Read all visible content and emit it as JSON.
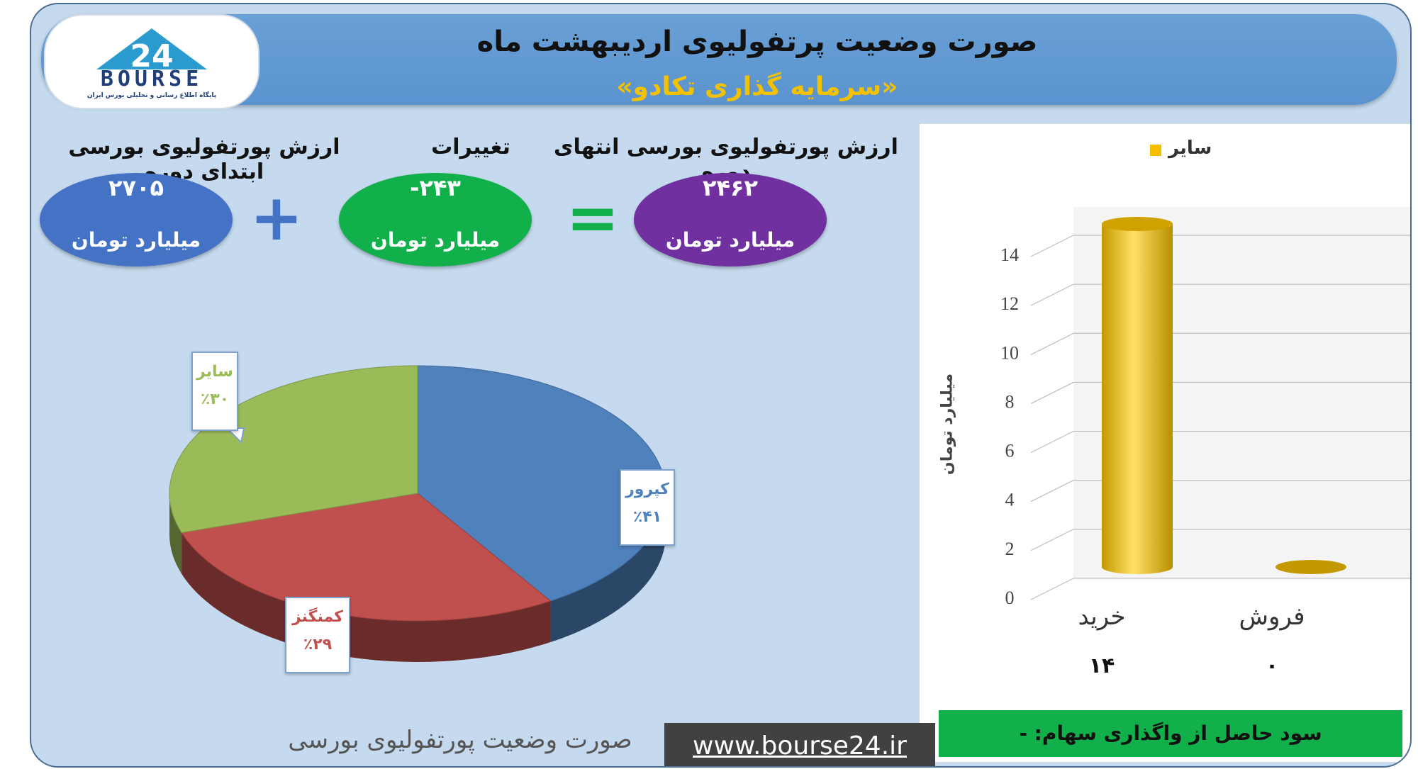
{
  "header": {
    "title": "صورت وضعیت پرتفولیوی اردیبهشت ماه",
    "subtitle": "«سرمایه گذاری تکادو»"
  },
  "logo": {
    "mark": "24",
    "text": "BOURSE",
    "tagline": "پایگاه اطلاع رسانی و تحلیلی بورس ایران"
  },
  "summary": {
    "start_label": "ارزش پورتفولیوی بورسی ابتدای دوره",
    "start_value": "۲۷۰۵",
    "change_label": "تغییرات",
    "change_value": "-۲۴۳",
    "end_label": "ارزش پورتفولیوی بورسی انتهای دوره",
    "end_value": "۲۴۶۲",
    "unit": "میلیارد تومان",
    "plus_symbol": "+",
    "equals_symbol": "=",
    "colors": {
      "start": "#4472c4",
      "change": "#00b050",
      "end": "#7030a0",
      "plus": "#4472c4",
      "equals": "#00b050"
    }
  },
  "chart_data": [
    {
      "type": "pie",
      "labels": [
        "کپرور",
        "کمنگنز",
        "سایر"
      ],
      "values": [
        41,
        29,
        30
      ],
      "value_labels": [
        "٪۴۱",
        "٪۲۹",
        "٪۳۰"
      ],
      "colors": [
        "#4f81bd",
        "#c0504d",
        "#9bbb59"
      ],
      "caption": "صورت وضعیت پورتفولیوی بورسی"
    },
    {
      "type": "bar",
      "categories": [
        "خرید",
        "فروش"
      ],
      "series": [
        {
          "name": "سایر",
          "values": [
            14,
            0
          ]
        }
      ],
      "value_labels": [
        "۱۴",
        "۰"
      ],
      "ylabel": "میلیارد تومان",
      "ylim": [
        0,
        14
      ],
      "yticks": [
        0,
        2,
        4,
        6,
        8,
        10,
        12,
        14
      ],
      "legend_position": "top",
      "color": "#f5bf00"
    }
  ],
  "footer": {
    "profit_text": "سود حاصل از واگذاری سهام: -",
    "website": "www.bourse24.ir"
  }
}
